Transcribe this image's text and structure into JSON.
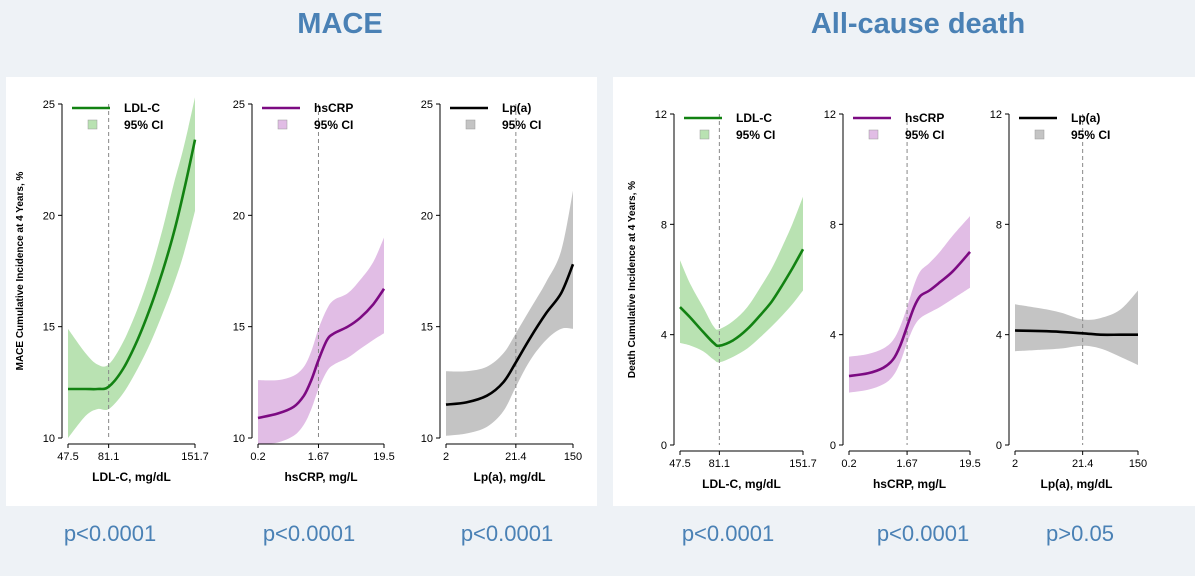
{
  "headings": {
    "left": "MACE",
    "right": "All-cause death"
  },
  "chart_data": [
    {
      "type": "line",
      "group": "MACE",
      "ylabel": "MACE Cumulative Incidence at 4 Years, %",
      "xlabel": "LDL-C, mg/dL",
      "legend": [
        "LDL-C",
        "95% CI"
      ],
      "color": "#128212",
      "band_color": "#b9e2b2",
      "ylim": [
        10,
        25
      ],
      "yticks": [
        10,
        15,
        20,
        25
      ],
      "xticks": [
        "47.5",
        "81.1",
        "151.7"
      ],
      "xref": 81.1,
      "xrange": [
        47.5,
        151.7
      ],
      "x": [
        47.5,
        60,
        70,
        81.1,
        90,
        100,
        110,
        120,
        130,
        140,
        151.7
      ],
      "y": [
        12.2,
        12.2,
        12.2,
        12.3,
        13.1,
        14.4,
        15.9,
        17.5,
        19.2,
        21.1,
        23.4
      ],
      "lower": [
        10.0,
        11.0,
        11.3,
        11.3,
        12.0,
        13.1,
        14.3,
        15.6,
        16.9,
        18.3,
        20.2
      ],
      "upper": [
        14.9,
        13.8,
        13.3,
        13.3,
        14.3,
        15.8,
        17.5,
        19.4,
        21.4,
        23.1,
        25.3
      ],
      "p_value": "p<0.0001"
    },
    {
      "type": "line",
      "group": "MACE",
      "ylabel": "",
      "xlabel": "hsCRP, mg/L",
      "legend": [
        "hsCRP",
        "95% CI"
      ],
      "color": "#7c0a82",
      "band_color": "#e1bde5",
      "ylim": [
        10,
        25
      ],
      "yticks": [
        10,
        15,
        20,
        25
      ],
      "xticks": [
        "0.2",
        "1.67",
        "19.5"
      ],
      "xref": 1.67,
      "xrange": [
        0.2,
        19.5
      ],
      "x": [
        0.2,
        0.4,
        0.7,
        1.0,
        1.3,
        1.67,
        2.3,
        3.0,
        5.0,
        8.0,
        13.0,
        19.5
      ],
      "y": [
        10.9,
        11.1,
        11.4,
        11.9,
        12.6,
        13.5,
        14.4,
        14.7,
        15.0,
        15.4,
        16.0,
        16.7
      ],
      "lower": [
        9.7,
        9.8,
        10.1,
        10.6,
        11.3,
        12.2,
        13.0,
        13.3,
        13.6,
        14.0,
        14.4,
        14.7
      ],
      "upper": [
        12.6,
        12.6,
        12.8,
        13.2,
        13.9,
        14.9,
        15.8,
        16.2,
        16.5,
        17.1,
        17.9,
        19.0
      ],
      "p_value": "p<0.0001"
    },
    {
      "type": "line",
      "group": "MACE",
      "ylabel": "",
      "xlabel": "Lp(a), mg/dL",
      "legend": [
        "Lp(a)",
        "95% CI"
      ],
      "color": "#000000",
      "band_color": "#c4c4c4",
      "ylim": [
        10,
        25
      ],
      "yticks": [
        10,
        15,
        20,
        25
      ],
      "xticks": [
        "2",
        "21.4",
        "150"
      ],
      "xref": 21.4,
      "xrange": [
        2,
        150
      ],
      "x": [
        2,
        4,
        8,
        14,
        21.4,
        35,
        60,
        100,
        150
      ],
      "y": [
        11.5,
        11.6,
        11.9,
        12.5,
        13.4,
        14.5,
        15.6,
        16.5,
        17.8
      ],
      "lower": [
        10.1,
        10.2,
        10.5,
        11.2,
        12.3,
        13.5,
        14.4,
        14.9,
        14.9
      ],
      "upper": [
        13.0,
        13.0,
        13.2,
        13.8,
        14.7,
        15.8,
        17.0,
        18.4,
        21.1
      ],
      "p_value": "p<0.0001"
    },
    {
      "type": "line",
      "group": "All-cause death",
      "ylabel": "Death Cumulative Incidence at 4 Years, %",
      "xlabel": "LDL-C, mg/dL",
      "legend": [
        "LDL-C",
        "95% CI"
      ],
      "color": "#128212",
      "band_color": "#b9e2b2",
      "ylim": [
        0,
        12
      ],
      "yticks": [
        0,
        4,
        8,
        12
      ],
      "xticks": [
        "47.5",
        "81.1",
        "151.7"
      ],
      "xref": 81.1,
      "xrange": [
        47.5,
        151.7
      ],
      "x": [
        47.5,
        55,
        65,
        75,
        81.1,
        90,
        100,
        110,
        120,
        130,
        140,
        151.7
      ],
      "y": [
        5.0,
        4.6,
        4.1,
        3.7,
        3.6,
        3.8,
        4.2,
        4.7,
        5.2,
        5.8,
        6.4,
        7.1
      ],
      "lower": [
        3.7,
        3.6,
        3.4,
        3.1,
        3.0,
        3.2,
        3.5,
        3.9,
        4.3,
        4.7,
        5.1,
        5.6
      ],
      "upper": [
        6.7,
        5.8,
        5.0,
        4.3,
        4.2,
        4.5,
        5.0,
        5.7,
        6.4,
        7.2,
        8.0,
        9.0
      ],
      "p_value": "p<0.0001"
    },
    {
      "type": "line",
      "group": "All-cause death",
      "ylabel": "",
      "xlabel": "hsCRP, mg/L",
      "legend": [
        "hsCRP",
        "95% CI"
      ],
      "color": "#7c0a82",
      "band_color": "#e1bde5",
      "ylim": [
        0,
        12
      ],
      "yticks": [
        0,
        4,
        8,
        12
      ],
      "xticks": [
        "0.2",
        "1.67",
        "19.5"
      ],
      "xref": 1.67,
      "xrange": [
        0.2,
        19.5
      ],
      "x": [
        0.2,
        0.4,
        0.7,
        1.0,
        1.3,
        1.67,
        2.2,
        2.8,
        4.0,
        6.0,
        10.0,
        19.5
      ],
      "y": [
        2.5,
        2.6,
        2.8,
        3.1,
        3.6,
        4.3,
        5.0,
        5.4,
        5.6,
        5.9,
        6.3,
        7.0
      ],
      "lower": [
        1.9,
        2.0,
        2.2,
        2.5,
        3.0,
        3.7,
        4.3,
        4.6,
        4.8,
        5.0,
        5.3,
        5.7
      ],
      "upper": [
        3.2,
        3.3,
        3.5,
        3.8,
        4.3,
        5.0,
        5.8,
        6.3,
        6.6,
        7.0,
        7.6,
        8.3
      ],
      "p_value": "p<0.0001"
    },
    {
      "type": "line",
      "group": "All-cause death",
      "ylabel": "",
      "xlabel": "Lp(a), mg/dL",
      "legend": [
        "Lp(a)",
        "95% CI"
      ],
      "color": "#000000",
      "band_color": "#c4c4c4",
      "ylim": [
        0,
        12
      ],
      "yticks": [
        0,
        4,
        8,
        12
      ],
      "xticks": [
        "2",
        "21.4",
        "150"
      ],
      "xref": 21.4,
      "xrange": [
        2,
        150
      ],
      "x": [
        2,
        5,
        10,
        21.4,
        40,
        80,
        150
      ],
      "y": [
        4.15,
        4.13,
        4.1,
        4.05,
        4.0,
        4.0,
        4.0
      ],
      "lower": [
        3.4,
        3.45,
        3.5,
        3.6,
        3.5,
        3.2,
        2.9
      ],
      "upper": [
        5.1,
        4.95,
        4.8,
        4.55,
        4.6,
        4.9,
        5.6
      ],
      "p_value": ">0.05"
    }
  ],
  "p_labels": [
    "p<0.0001",
    "p<0.0001",
    "p<0.0001",
    "p<0.0001",
    "p<0.0001",
    "p>0.05"
  ]
}
